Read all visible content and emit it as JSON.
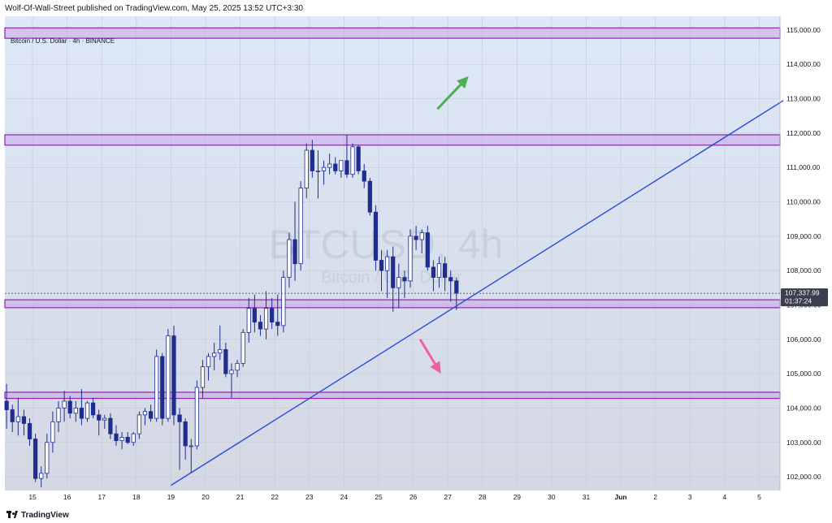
{
  "header": {
    "published_text": "Wolf-Of-Wall-Street published on TradingView.com, May 25, 2025 13:52 UTC+3:30"
  },
  "symbol_line": "Bitcoin / U.S. Dollar · 4h · BINANCE",
  "watermark": {
    "ticker": "BTCUSD, 4h",
    "name": "Bitcoin / U.S. Dollar"
  },
  "footer": {
    "brand": "TradingView"
  },
  "colors": {
    "bg_top": "#dde8f8",
    "bg_bottom": "#d4d8e3",
    "candle_up": "#ffffff",
    "candle_down": "#1e2d8e",
    "zone_fill": "#c8a8e6",
    "zone_border": "#8e24aa",
    "trendline": "#2a4bd7",
    "arrow_up": "#4caf50",
    "arrow_down": "#f0609a"
  },
  "chart_data": {
    "type": "candlestick",
    "timeframe": "4h",
    "ylim": [
      101600,
      115400
    ],
    "y_ticks": [
      "102,000.00",
      "103,000.00",
      "104,000.00",
      "105,000.00",
      "106,000.00",
      "107,000.00",
      "108,000.00",
      "109,000.00",
      "110,000.00",
      "111,000.00",
      "112,000.00",
      "113,000.00",
      "114,000.00",
      "115,000.00"
    ],
    "y_tick_values": [
      102000,
      103000,
      104000,
      105000,
      106000,
      107000,
      108000,
      109000,
      110000,
      111000,
      112000,
      113000,
      114000,
      115000
    ],
    "x_ticks": [
      "15",
      "16",
      "17",
      "18",
      "19",
      "20",
      "21",
      "22",
      "23",
      "24",
      "25",
      "26",
      "27",
      "28",
      "29",
      "30",
      "31",
      "Jun",
      "2",
      "3",
      "4",
      "5"
    ],
    "x_tick_days": [
      0,
      1,
      2,
      3,
      4,
      5,
      6,
      7,
      8,
      9,
      10,
      11,
      12,
      13,
      14,
      15,
      16,
      17,
      18,
      19,
      20,
      21
    ],
    "x_range_days": [
      -0.8,
      21.6
    ],
    "last_price": {
      "label": "107,337.99",
      "countdown": "01:37:24",
      "value": 107338
    },
    "zones": [
      {
        "low": 114760,
        "high": 115060
      },
      {
        "low": 111650,
        "high": 111950
      },
      {
        "low": 106920,
        "high": 107150
      },
      {
        "low": 104280,
        "high": 104460
      }
    ],
    "trendline": {
      "start": {
        "day": 4.0,
        "price": 101750
      },
      "end": {
        "day": 21.7,
        "price": 112950
      }
    },
    "arrows": [
      {
        "direction": "up",
        "from": {
          "day": 11.7,
          "price": 112700
        },
        "to": {
          "day": 12.6,
          "price": 113650
        }
      },
      {
        "direction": "down",
        "from": {
          "day": 11.2,
          "price": 106000
        },
        "to": {
          "day": 11.8,
          "price": 105000
        }
      }
    ],
    "candles": [
      {
        "o": 104200,
        "h": 104700,
        "l": 103400,
        "c": 103950
      },
      {
        "o": 103950,
        "h": 104100,
        "l": 103300,
        "c": 103600
      },
      {
        "o": 103600,
        "h": 104300,
        "l": 103200,
        "c": 103750
      },
      {
        "o": 103750,
        "h": 103950,
        "l": 103200,
        "c": 103550
      },
      {
        "o": 103550,
        "h": 103700,
        "l": 102900,
        "c": 103100
      },
      {
        "o": 103100,
        "h": 103250,
        "l": 101850,
        "c": 101950
      },
      {
        "o": 101950,
        "h": 102300,
        "l": 101700,
        "c": 102100
      },
      {
        "o": 102100,
        "h": 103250,
        "l": 101950,
        "c": 103000
      },
      {
        "o": 103000,
        "h": 103900,
        "l": 102700,
        "c": 103600
      },
      {
        "o": 103600,
        "h": 104200,
        "l": 103300,
        "c": 104000
      },
      {
        "o": 104000,
        "h": 104500,
        "l": 103600,
        "c": 104200
      },
      {
        "o": 104200,
        "h": 104350,
        "l": 103700,
        "c": 103850
      },
      {
        "o": 103850,
        "h": 104200,
        "l": 103600,
        "c": 104000
      },
      {
        "o": 104000,
        "h": 104550,
        "l": 103500,
        "c": 103700
      },
      {
        "o": 103700,
        "h": 104200,
        "l": 103600,
        "c": 104150
      },
      {
        "o": 104150,
        "h": 104300,
        "l": 103700,
        "c": 103800
      },
      {
        "o": 103800,
        "h": 103950,
        "l": 103200,
        "c": 103650
      },
      {
        "o": 103650,
        "h": 103800,
        "l": 103400,
        "c": 103700
      },
      {
        "o": 103700,
        "h": 103850,
        "l": 103100,
        "c": 103250
      },
      {
        "o": 103250,
        "h": 103500,
        "l": 102900,
        "c": 103050
      },
      {
        "o": 103050,
        "h": 103300,
        "l": 102800,
        "c": 103150
      },
      {
        "o": 103150,
        "h": 103300,
        "l": 102950,
        "c": 103000
      },
      {
        "o": 103000,
        "h": 103300,
        "l": 102900,
        "c": 103250
      },
      {
        "o": 103250,
        "h": 103900,
        "l": 103100,
        "c": 103800
      },
      {
        "o": 103800,
        "h": 104000,
        "l": 103500,
        "c": 103900
      },
      {
        "o": 103900,
        "h": 104100,
        "l": 103600,
        "c": 103700
      },
      {
        "o": 103700,
        "h": 105700,
        "l": 103600,
        "c": 105500
      },
      {
        "o": 105500,
        "h": 105600,
        "l": 103500,
        "c": 103700
      },
      {
        "o": 103700,
        "h": 106300,
        "l": 103600,
        "c": 106100
      },
      {
        "o": 106100,
        "h": 106400,
        "l": 103500,
        "c": 103800
      },
      {
        "o": 103800,
        "h": 104000,
        "l": 102200,
        "c": 103600
      },
      {
        "o": 103600,
        "h": 103700,
        "l": 102500,
        "c": 102900
      },
      {
        "o": 102900,
        "h": 103100,
        "l": 102100,
        "c": 102900
      },
      {
        "o": 102900,
        "h": 104800,
        "l": 102800,
        "c": 104600
      },
      {
        "o": 104600,
        "h": 105400,
        "l": 104300,
        "c": 105200
      },
      {
        "o": 105200,
        "h": 105600,
        "l": 104800,
        "c": 105500
      },
      {
        "o": 105500,
        "h": 105900,
        "l": 105100,
        "c": 105600
      },
      {
        "o": 105600,
        "h": 106400,
        "l": 105400,
        "c": 105700
      },
      {
        "o": 105700,
        "h": 105900,
        "l": 104900,
        "c": 105000
      },
      {
        "o": 105000,
        "h": 105300,
        "l": 104300,
        "c": 105100
      },
      {
        "o": 105100,
        "h": 105400,
        "l": 104900,
        "c": 105300
      },
      {
        "o": 105300,
        "h": 106300,
        "l": 105200,
        "c": 106200
      },
      {
        "o": 106200,
        "h": 107200,
        "l": 105900,
        "c": 106900
      },
      {
        "o": 106900,
        "h": 107300,
        "l": 106200,
        "c": 106500
      },
      {
        "o": 106500,
        "h": 106700,
        "l": 106100,
        "c": 106300
      },
      {
        "o": 106300,
        "h": 107400,
        "l": 106000,
        "c": 106900
      },
      {
        "o": 106900,
        "h": 107200,
        "l": 106300,
        "c": 106500
      },
      {
        "o": 106500,
        "h": 107300,
        "l": 106100,
        "c": 106400
      },
      {
        "o": 106400,
        "h": 108000,
        "l": 106200,
        "c": 107800
      },
      {
        "o": 107800,
        "h": 109100,
        "l": 107500,
        "c": 108900
      },
      {
        "o": 108900,
        "h": 110000,
        "l": 107700,
        "c": 108200
      },
      {
        "o": 108200,
        "h": 110600,
        "l": 108000,
        "c": 110400
      },
      {
        "o": 110400,
        "h": 111700,
        "l": 110100,
        "c": 111500
      },
      {
        "o": 111500,
        "h": 111800,
        "l": 110700,
        "c": 110900
      },
      {
        "o": 110900,
        "h": 111500,
        "l": 110100,
        "c": 110900
      },
      {
        "o": 110900,
        "h": 111200,
        "l": 110500,
        "c": 111000
      },
      {
        "o": 111000,
        "h": 111400,
        "l": 110800,
        "c": 111100
      },
      {
        "o": 111100,
        "h": 111300,
        "l": 110800,
        "c": 110900
      },
      {
        "o": 110900,
        "h": 111200,
        "l": 110700,
        "c": 111200
      },
      {
        "o": 111200,
        "h": 111950,
        "l": 110700,
        "c": 110800
      },
      {
        "o": 110800,
        "h": 111700,
        "l": 110700,
        "c": 111600
      },
      {
        "o": 111600,
        "h": 111650,
        "l": 110800,
        "c": 110900
      },
      {
        "o": 110900,
        "h": 111100,
        "l": 110400,
        "c": 110600
      },
      {
        "o": 110600,
        "h": 110700,
        "l": 109600,
        "c": 109700
      },
      {
        "o": 109700,
        "h": 109900,
        "l": 108000,
        "c": 108300
      },
      {
        "o": 108300,
        "h": 108600,
        "l": 107400,
        "c": 108000
      },
      {
        "o": 108000,
        "h": 108600,
        "l": 107200,
        "c": 108400
      },
      {
        "o": 108400,
        "h": 108700,
        "l": 106800,
        "c": 107500
      },
      {
        "o": 107500,
        "h": 108200,
        "l": 106900,
        "c": 107800
      },
      {
        "o": 107800,
        "h": 108000,
        "l": 107200,
        "c": 107700
      },
      {
        "o": 107700,
        "h": 109200,
        "l": 107500,
        "c": 109000
      },
      {
        "o": 109000,
        "h": 109300,
        "l": 108600,
        "c": 108900
      },
      {
        "o": 108900,
        "h": 109200,
        "l": 108500,
        "c": 109100
      },
      {
        "o": 109100,
        "h": 109300,
        "l": 108000,
        "c": 108100
      },
      {
        "o": 108100,
        "h": 108300,
        "l": 107400,
        "c": 107800
      },
      {
        "o": 107800,
        "h": 108400,
        "l": 107500,
        "c": 108200
      },
      {
        "o": 108200,
        "h": 108400,
        "l": 107400,
        "c": 107800
      },
      {
        "o": 107800,
        "h": 108000,
        "l": 107100,
        "c": 107700
      },
      {
        "o": 107700,
        "h": 107800,
        "l": 106850,
        "c": 107340
      }
    ]
  }
}
